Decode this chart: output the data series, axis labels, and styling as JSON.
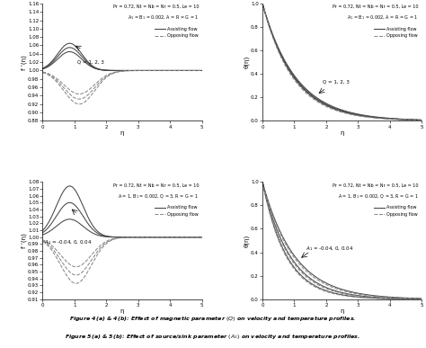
{
  "fig4a": {
    "title_line1": "Pr = 0.72, Nt = Nb = Nr = 0.5, Le = 10",
    "title_line2": "A$_1$ = B$_1$ = 0.002, A = R = G = 1",
    "ylabel": "f ’(η)",
    "xlabel": "η",
    "xlim": [
      0,
      5
    ],
    "ylim": [
      0.88,
      1.16
    ],
    "yticks": [
      0.88,
      0.9,
      0.92,
      0.94,
      0.96,
      0.98,
      1.0,
      1.02,
      1.04,
      1.06,
      1.08,
      1.1,
      1.12,
      1.14,
      1.16
    ],
    "yticklabels": [
      "0.88",
      "0.90",
      "0.92",
      "0.94",
      "0.96",
      "0.98",
      "1.00",
      "1.02",
      "1.04",
      "1.06",
      "1.08",
      "1.10",
      "1.12",
      "1.14",
      "1.16"
    ],
    "xticks": [
      0,
      1,
      2,
      3,
      4,
      5
    ],
    "legend_assist": "Assisting flow",
    "legend_oppose": "Opposing flow"
  },
  "fig4b": {
    "title_line1": "Pr = 0.72, Nt = Nb = Nr = 0.5, Le = 10",
    "title_line2": "A$_1$ = B$_1$ = 0.002, A = R = G = 1",
    "ylabel": "θ(η)",
    "xlabel": "η",
    "xlim": [
      0,
      5
    ],
    "ylim": [
      0.0,
      1.0
    ],
    "yticks": [
      0.0,
      0.2,
      0.4,
      0.6,
      0.8,
      1.0
    ],
    "yticklabels": [
      "0.0",
      "0.2",
      "0.4",
      "0.6",
      "0.8",
      "1.0"
    ],
    "xticks": [
      0,
      1,
      2,
      3,
      4,
      5
    ],
    "legend_assist": "Assisting flow",
    "legend_oppose": "Opposing flow"
  },
  "fig5a": {
    "title_line1": "Pr = 0.72, Nt = Nb = Nr = 0.5, Le = 10",
    "title_line2": "A = 1, B$_1$ = 0.002, Q = 3, R = G = 1",
    "ylabel": "f ’(η)",
    "xlabel": "η",
    "xlim": [
      0,
      5
    ],
    "ylim": [
      0.91,
      1.08
    ],
    "yticks": [
      0.91,
      0.92,
      0.93,
      0.94,
      0.95,
      0.96,
      0.97,
      0.98,
      0.99,
      1.0,
      1.01,
      1.02,
      1.03,
      1.04,
      1.05,
      1.06,
      1.07,
      1.08
    ],
    "yticklabels": [
      "0.91",
      "0.92",
      "0.93",
      "0.94",
      "0.95",
      "0.96",
      "0.97",
      "0.98",
      "0.99",
      "1.00",
      "1.01",
      "1.02",
      "1.03",
      "1.04",
      "1.05",
      "1.06",
      "1.07",
      "1.08"
    ],
    "xticks": [
      0,
      1,
      2,
      3,
      4,
      5
    ],
    "legend_assist": "Assisting flow",
    "legend_oppose": "Opposing flow"
  },
  "fig5b": {
    "title_line1": "Pr = 0.72, Nt = Nb = Nr = 0.5, Le = 10",
    "title_line2": "A = 1, B$_1$ = 0.002, Q = 3, R = G = 1",
    "ylabel": "θ(η)",
    "xlabel": "η",
    "xlim": [
      0,
      5
    ],
    "ylim": [
      0.0,
      1.0
    ],
    "yticks": [
      0.0,
      0.2,
      0.4,
      0.6,
      0.8,
      1.0
    ],
    "yticklabels": [
      "0.0",
      "0.2",
      "0.4",
      "0.6",
      "0.8",
      "1.0"
    ],
    "xticks": [
      0,
      1,
      2,
      3,
      4,
      5
    ],
    "legend_assist": "Assisting flow",
    "legend_oppose": "Opposing flow"
  },
  "caption1": "Figure 4(a) & 4(b): Effect of magnetic parameter (Q) on velocity and temperature profiles.",
  "caption2": "Figure 5(a) & 5(b): Effect of source/sink parameter (A",
  "caption2b": ") on velocity and temperature profiles.",
  "line_color_assist": "#444444",
  "line_color_oppose": "#888888",
  "bg_color": "#ffffff"
}
